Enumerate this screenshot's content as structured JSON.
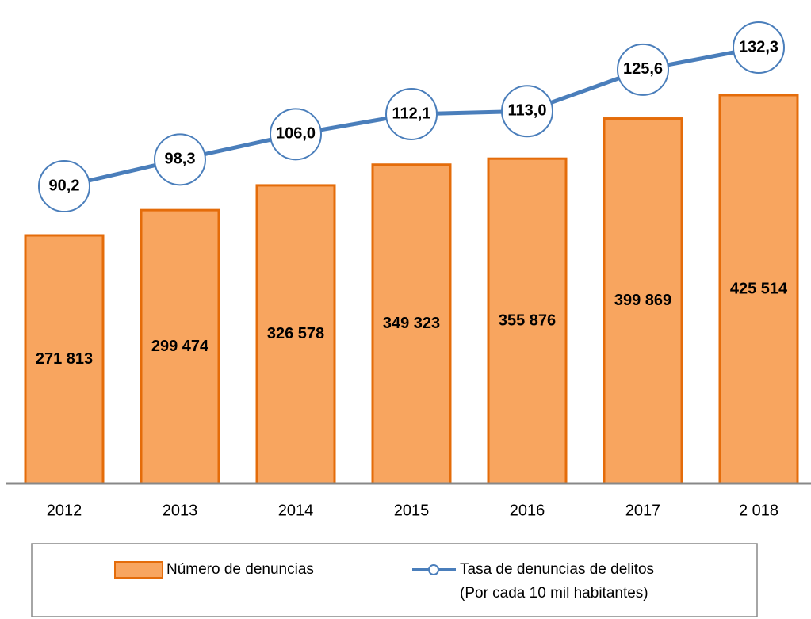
{
  "chart_data": {
    "type": "bar",
    "categories": [
      "2012",
      "2013",
      "2014",
      "2015",
      "2016",
      "2017",
      "2 018"
    ],
    "series": [
      {
        "name": "Número de denuncias",
        "type": "bar",
        "color": "#f8a55f",
        "edge_color": "#e46c0a",
        "values": [
          271813,
          299474,
          326578,
          349323,
          355876,
          399869,
          425514
        ],
        "value_labels": [
          "271 813",
          "299 474",
          "326 578",
          "349 323",
          "355 876",
          "399 869",
          "425 514"
        ]
      },
      {
        "name": "Tasa de denuncias de delitos\n(Por cada 10 mil habitantes)",
        "type": "line",
        "color": "#4a7ebb",
        "values": [
          90.2,
          98.3,
          106.0,
          112.1,
          113.0,
          125.6,
          132.3
        ],
        "value_labels": [
          "90,2",
          "98,3",
          "106,0",
          "112,1",
          "113,0",
          "125,6",
          "132,3"
        ]
      }
    ],
    "legend": "bottom"
  }
}
